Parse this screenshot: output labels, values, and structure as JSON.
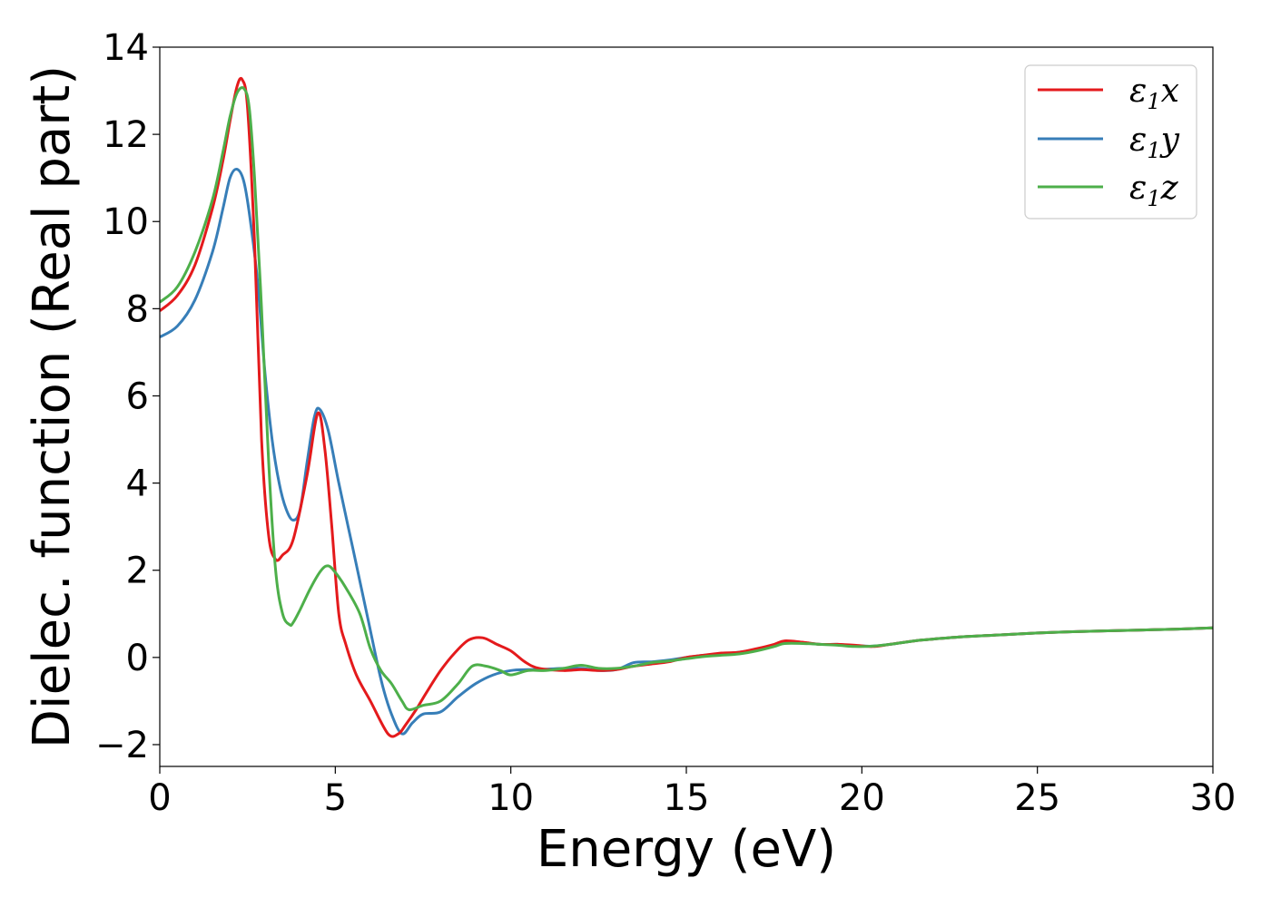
{
  "chart_data": {
    "type": "line",
    "title": "",
    "xlabel": "Energy (eV)",
    "ylabel": "Dielec. function (Real part)",
    "xlim": [
      0,
      30
    ],
    "ylim": [
      -2.5,
      14
    ],
    "xticks": [
      0,
      5,
      10,
      15,
      20,
      25,
      30
    ],
    "yticks": [
      -2,
      0,
      2,
      4,
      6,
      8,
      10,
      12,
      14
    ],
    "xtick_labels": [
      "0",
      "5",
      "10",
      "15",
      "20",
      "25",
      "30"
    ],
    "ytick_labels": [
      "−2",
      "0",
      "2",
      "4",
      "6",
      "8",
      "10",
      "12",
      "14"
    ],
    "grid": false,
    "legend_position": "top-right",
    "series": [
      {
        "name": "ε1x",
        "legend_base": "ε",
        "legend_sub": "1",
        "legend_var": "x",
        "color": "#e41a1c",
        "x": [
          0,
          0.5,
          1,
          1.5,
          1.8,
          2.0,
          2.2,
          2.35,
          2.5,
          2.7,
          2.9,
          3.1,
          3.3,
          3.5,
          3.8,
          4.2,
          4.5,
          4.7,
          4.9,
          5.1,
          5.3,
          5.6,
          6.0,
          6.5,
          6.8,
          7.0,
          7.3,
          7.6,
          8.0,
          8.4,
          8.8,
          9.2,
          9.6,
          10.0,
          10.4,
          10.8,
          11.5,
          12.0,
          12.5,
          13.0,
          13.5,
          14.0,
          14.5,
          15.0,
          15.5,
          16.0,
          16.5,
          17.0,
          17.5,
          17.8,
          18.3,
          18.8,
          19.3,
          19.8,
          20.3,
          20.8,
          21.5,
          22.0,
          23.0,
          24.0,
          25.0,
          26.0,
          27.0,
          28.0,
          29.0,
          30.0
        ],
        "y": [
          7.95,
          8.3,
          9.0,
          10.3,
          11.4,
          12.3,
          13.1,
          13.25,
          12.6,
          9.5,
          5.0,
          2.8,
          2.25,
          2.35,
          2.7,
          4.2,
          5.6,
          4.8,
          3.0,
          1.0,
          0.3,
          -0.4,
          -1.0,
          -1.75,
          -1.75,
          -1.55,
          -1.2,
          -0.8,
          -0.3,
          0.1,
          0.4,
          0.45,
          0.3,
          0.15,
          -0.1,
          -0.25,
          -0.3,
          -0.28,
          -0.3,
          -0.28,
          -0.2,
          -0.15,
          -0.1,
          0.0,
          0.05,
          0.1,
          0.12,
          0.2,
          0.3,
          0.38,
          0.35,
          0.3,
          0.3,
          0.28,
          0.25,
          0.3,
          0.38,
          0.42,
          0.48,
          0.52,
          0.56,
          0.59,
          0.61,
          0.63,
          0.65,
          0.68
        ]
      },
      {
        "name": "ε1y",
        "legend_base": "ε",
        "legend_sub": "1",
        "legend_var": "y",
        "color": "#377eb8",
        "x": [
          0,
          0.5,
          1,
          1.5,
          1.8,
          2.0,
          2.2,
          2.4,
          2.6,
          2.8,
          3.0,
          3.2,
          3.4,
          3.6,
          3.8,
          4.0,
          4.2,
          4.4,
          4.55,
          4.8,
          5.1,
          5.5,
          5.9,
          6.3,
          6.6,
          6.9,
          7.2,
          7.5,
          8.0,
          8.5,
          9.0,
          9.5,
          10.0,
          10.5,
          11.0,
          11.5,
          12.0,
          12.5,
          13.0,
          13.5,
          14.0,
          14.5,
          15.0,
          15.5,
          16.0,
          16.5,
          17.0,
          17.5,
          17.8,
          18.3,
          18.8,
          19.3,
          19.8,
          20.3,
          20.8,
          21.5,
          22.0,
          23.0,
          24.0,
          25.0,
          26.0,
          27.0,
          28.0,
          29.0,
          30.0
        ],
        "y": [
          7.35,
          7.6,
          8.2,
          9.3,
          10.3,
          11.0,
          11.2,
          10.9,
          9.9,
          8.5,
          6.5,
          5.0,
          4.0,
          3.4,
          3.15,
          3.4,
          4.5,
          5.5,
          5.7,
          5.2,
          4.0,
          2.5,
          1.0,
          -0.5,
          -1.3,
          -1.75,
          -1.5,
          -1.3,
          -1.25,
          -0.9,
          -0.6,
          -0.4,
          -0.3,
          -0.28,
          -0.27,
          -0.25,
          -0.25,
          -0.3,
          -0.28,
          -0.12,
          -0.1,
          -0.06,
          0.0,
          0.05,
          0.08,
          0.12,
          0.18,
          0.28,
          0.35,
          0.34,
          0.3,
          0.3,
          0.27,
          0.26,
          0.3,
          0.38,
          0.42,
          0.48,
          0.52,
          0.56,
          0.59,
          0.61,
          0.63,
          0.65,
          0.68
        ]
      },
      {
        "name": "ε1z",
        "legend_base": "ε",
        "legend_sub": "1",
        "legend_var": "z",
        "color": "#4daf4a",
        "x": [
          0,
          0.5,
          1,
          1.5,
          1.8,
          2.0,
          2.2,
          2.4,
          2.55,
          2.7,
          2.9,
          3.1,
          3.3,
          3.5,
          3.7,
          3.8,
          4.0,
          4.3,
          4.6,
          4.8,
          5.0,
          5.3,
          5.7,
          6.0,
          6.3,
          6.6,
          6.9,
          7.1,
          7.5,
          8.0,
          8.5,
          8.9,
          9.3,
          9.7,
          10.0,
          10.5,
          11.0,
          11.5,
          12.0,
          12.5,
          13.0,
          13.5,
          14.0,
          14.5,
          15.0,
          15.5,
          16.0,
          16.5,
          17.0,
          17.5,
          17.8,
          18.3,
          18.8,
          19.3,
          19.8,
          20.3,
          20.8,
          21.5,
          22.0,
          23.0,
          24.0,
          25.0,
          26.0,
          27.0,
          28.0,
          29.0,
          30.0
        ],
        "y": [
          8.15,
          8.5,
          9.3,
          10.5,
          11.6,
          12.4,
          12.95,
          13.05,
          12.6,
          11.0,
          8.0,
          4.5,
          2.0,
          1.0,
          0.75,
          0.8,
          1.1,
          1.6,
          2.0,
          2.1,
          1.95,
          1.6,
          1.0,
          0.2,
          -0.3,
          -0.6,
          -1.0,
          -1.2,
          -1.1,
          -1.0,
          -0.6,
          -0.2,
          -0.2,
          -0.3,
          -0.4,
          -0.3,
          -0.3,
          -0.25,
          -0.18,
          -0.25,
          -0.25,
          -0.2,
          -0.12,
          -0.08,
          -0.03,
          0.02,
          0.05,
          0.08,
          0.15,
          0.25,
          0.32,
          0.32,
          0.3,
          0.28,
          0.25,
          0.26,
          0.3,
          0.38,
          0.42,
          0.48,
          0.52,
          0.56,
          0.59,
          0.61,
          0.63,
          0.65,
          0.68
        ]
      }
    ]
  }
}
